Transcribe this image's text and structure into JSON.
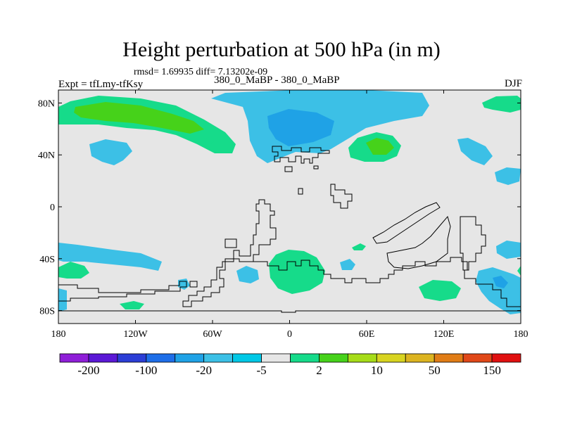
{
  "header": {
    "title": "Height perturbation at 500 hPa (in m)",
    "stats": "rmsd= 1.69935 diff= 7.13202e-09",
    "experiment": "Expt = tfLmy-tfKsy",
    "runs": "380_0_MaBP - 380_0_MaBP",
    "season": "DJF"
  },
  "map": {
    "lat_labels": [
      "80N",
      "40N",
      "0",
      "40S",
      "80S"
    ],
    "lat_values": [
      80,
      40,
      0,
      -40,
      -80
    ],
    "lon_labels": [
      "180",
      "120W",
      "60W",
      "0",
      "60E",
      "120E",
      "180"
    ],
    "lon_values": [
      -180,
      -120,
      -60,
      0,
      60,
      120,
      180
    ],
    "background_color": "#e6e6e6"
  },
  "colorbar": {
    "colors": [
      "#8f1ed8",
      "#5b18d6",
      "#2b3ed6",
      "#1e6ee8",
      "#1fa2e6",
      "#3cc0e6",
      "#00c8e6",
      "#e6e6e6",
      "#16db8a",
      "#46d21a",
      "#a6dc18",
      "#d8d420",
      "#dcb420",
      "#e07c16",
      "#e04818",
      "#e01010"
    ],
    "labels": [
      "-200",
      "-100",
      "-20",
      "-5",
      "2",
      "10",
      "50",
      "150"
    ]
  }
}
